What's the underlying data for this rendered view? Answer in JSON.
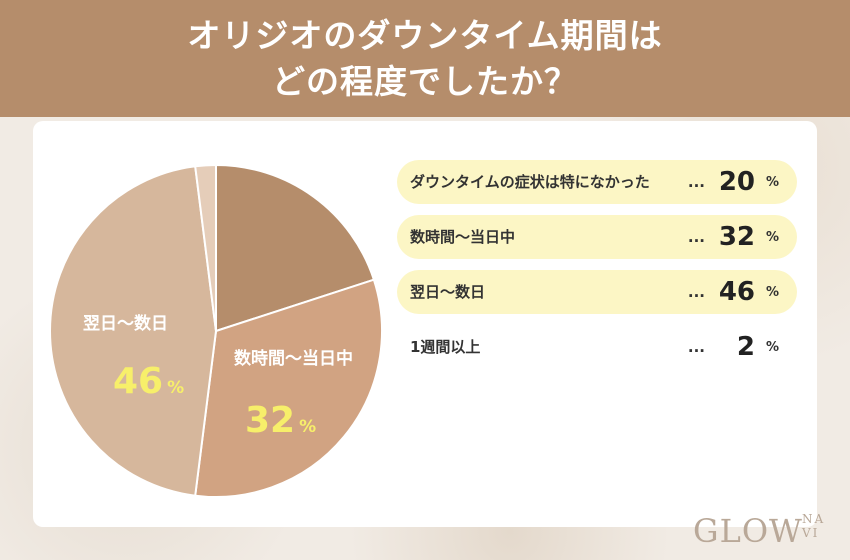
{
  "header": {
    "title_line1": "オリジオのダウンタイム期間は",
    "title_line2": "どの程度でしたか？"
  },
  "chart_data": {
    "type": "pie",
    "unit": "%",
    "slices": [
      {
        "label": "ダウンタイムの症状は特になかった",
        "value": 20,
        "color": "#b58d6b"
      },
      {
        "label": "数時間〜当日中",
        "value": 32,
        "color": "#d1a382"
      },
      {
        "label": "翌日〜数日",
        "value": 46,
        "color": "#d6b79c"
      },
      {
        "label": "1週間以上",
        "value": 2,
        "color": "#e5cdb9"
      }
    ],
    "pie_labels": [
      {
        "text": "数時間〜当日中",
        "value": "32",
        "unit": "%"
      },
      {
        "text": "翌日〜数日",
        "value": "46",
        "unit": "%"
      }
    ]
  },
  "legend": {
    "rows": [
      {
        "label": "ダウンタイムの症状は特になかった",
        "dots": "...",
        "value": "20",
        "unit": "%",
        "highlight": true
      },
      {
        "label": "数時間〜当日中",
        "dots": "...",
        "value": "32",
        "unit": "%",
        "highlight": true
      },
      {
        "label": "翌日〜数日",
        "dots": "...",
        "value": "46",
        "unit": "%",
        "highlight": true
      },
      {
        "label": "1週間以上",
        "dots": "...",
        "value": "2",
        "unit": "%",
        "highlight": false
      }
    ]
  },
  "logo": {
    "main": "GLOW",
    "sub_top": "NA",
    "sub_bottom": "VI"
  }
}
